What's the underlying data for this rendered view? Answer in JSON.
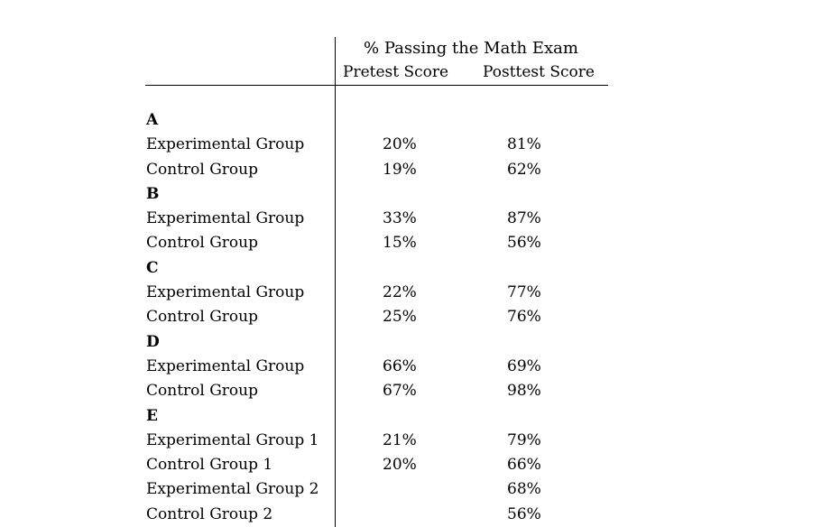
{
  "table": {
    "super_header": "% Passing the Math Exam",
    "col_pretest": "Pretest Score",
    "col_posttest": "Posttest Score",
    "rows": [
      {
        "type": "section",
        "label": "A",
        "pre": "",
        "post": ""
      },
      {
        "type": "data",
        "label": "Experimental Group",
        "pre": "20%",
        "post": "81%"
      },
      {
        "type": "data",
        "label": "Control Group",
        "pre": "19%",
        "post": "62%"
      },
      {
        "type": "section",
        "label": "B",
        "pre": "",
        "post": ""
      },
      {
        "type": "data",
        "label": "Experimental Group",
        "pre": "33%",
        "post": "87%"
      },
      {
        "type": "data",
        "label": "Control Group",
        "pre": "15%",
        "post": "56%"
      },
      {
        "type": "section",
        "label": "C",
        "pre": "",
        "post": ""
      },
      {
        "type": "data",
        "label": "Experimental Group",
        "pre": "22%",
        "post": "77%"
      },
      {
        "type": "data",
        "label": "Control Group",
        "pre": "25%",
        "post": "76%"
      },
      {
        "type": "section",
        "label": "D",
        "pre": "",
        "post": ""
      },
      {
        "type": "data",
        "label": "Experimental Group",
        "pre": "66%",
        "post": "69%"
      },
      {
        "type": "data",
        "label": "Control Group",
        "pre": "67%",
        "post": "98%"
      },
      {
        "type": "section",
        "label": "E",
        "pre": "",
        "post": ""
      },
      {
        "type": "data",
        "label": "Experimental Group 1",
        "pre": "21%",
        "post": "79%"
      },
      {
        "type": "data",
        "label": "Control Group 1",
        "pre": "20%",
        "post": "66%"
      },
      {
        "type": "data",
        "label": "Experimental Group 2",
        "pre": "",
        "post": "68%"
      },
      {
        "type": "data",
        "label": "Control Group 2",
        "pre": "",
        "post": "56%"
      }
    ]
  }
}
